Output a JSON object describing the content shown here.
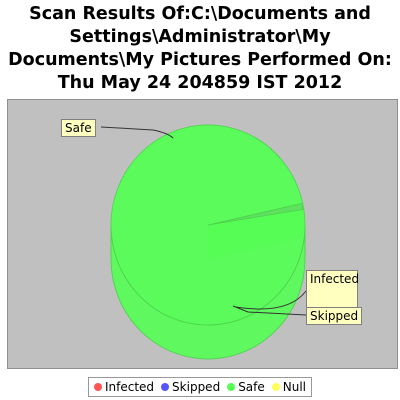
{
  "chart_data": {
    "type": "pie",
    "title_lines": [
      "Scan Results Of:C:\\Documents and",
      "Settings\\Administrator\\My",
      "Documents\\My Pictures Performed On:",
      "Thu May 24 204859 IST 2012"
    ],
    "slices": [
      {
        "name": "Infected",
        "value": 0,
        "color": "#ff5555"
      },
      {
        "name": "Skipped",
        "value": 1,
        "color": "#5555ff"
      },
      {
        "name": "Safe",
        "value": 99,
        "color": "#55ff55"
      },
      {
        "name": "Null",
        "value": 0,
        "color": "#ffff55"
      }
    ],
    "style": "3d",
    "legend_position": "bottom",
    "callout_labels": [
      "Safe",
      "Infected",
      "Skipped"
    ],
    "plot_background": "#c0c0c0"
  }
}
